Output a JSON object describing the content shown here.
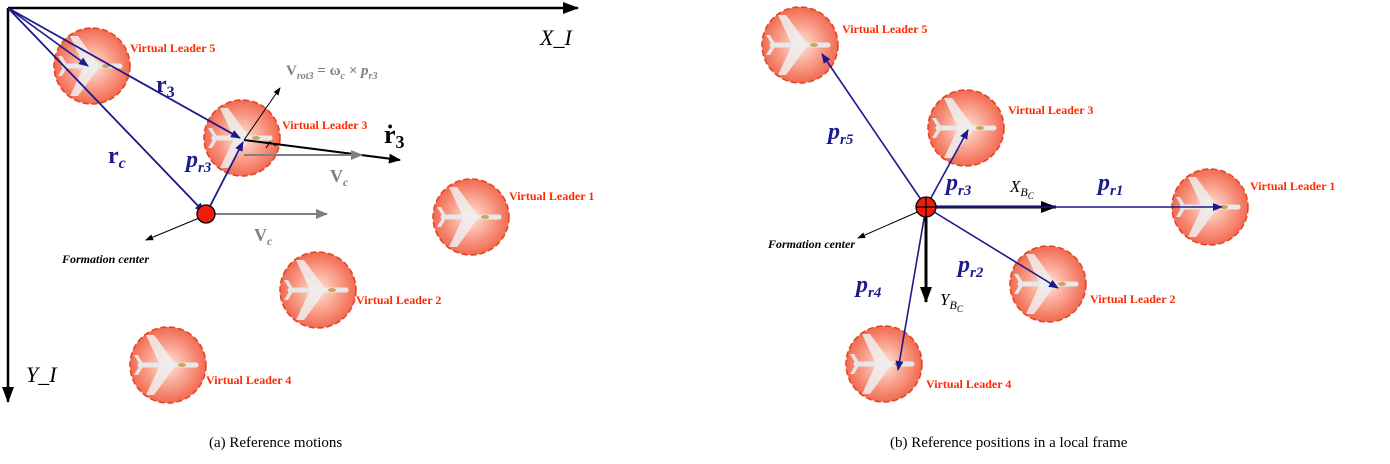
{
  "panel_a": {
    "caption": "(a) Reference motions",
    "axis_x": "X_I",
    "axis_y": "Y_I",
    "formation_center": "Formation center",
    "leaders": [
      "Virtual Leader 5",
      "Virtual Leader 3",
      "Virtual Leader 1",
      "Virtual Leader 2",
      "Virtual Leader 4"
    ],
    "vec_r3": "r",
    "vec_r3_sub": "3",
    "vec_rc": "r",
    "vec_rc_sub": "c",
    "vec_pr3": "p",
    "vec_pr3_sub": "r3",
    "vec_rdot3": "ṙ",
    "vec_rdot3_sub": "3",
    "vel_c_upper": "V",
    "vel_c_upper_sub": "c",
    "vel_c_lower": "V",
    "vel_c_lower_sub": "c",
    "vrot_main": "V",
    "vrot_sub": "rot3",
    "vrot_expr": " = ω",
    "vrot_expr_sub": "c",
    "vrot_expr2": " × p",
    "vrot_expr2_sub": "r3"
  },
  "panel_b": {
    "caption": "(b) Reference positions in a local frame",
    "axis_x": "X",
    "axis_x_sub": "B",
    "axis_x_subsub": "C",
    "axis_y": "Y",
    "axis_y_sub": "B",
    "axis_y_subsub": "C",
    "formation_center": "Formation center",
    "leaders": [
      "Virtual Leader 5",
      "Virtual Leader 3",
      "Virtual Leader 1",
      "Virtual Leader 2",
      "Virtual Leader 4"
    ],
    "vectors": [
      "p",
      "p",
      "p",
      "p",
      "p"
    ],
    "vector_subs": [
      "r5",
      "r3",
      "r1",
      "r2",
      "r4"
    ]
  },
  "colors": {
    "vector_blue": "#1a1a8c",
    "leader_label": "#ff2a00",
    "leader_fill": "#f46a56",
    "velocity_gray": "#808080"
  }
}
